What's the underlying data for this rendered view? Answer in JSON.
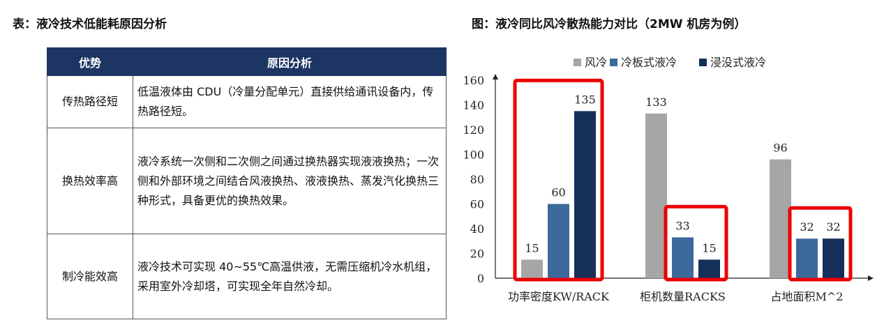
{
  "left": {
    "heading": "表：液冷技术低能耗原因分析",
    "table": {
      "headers": [
        "优势",
        "原因分析"
      ],
      "rows": [
        {
          "advantage": "传热路径短",
          "reason": "低温液体由 CDU（冷量分配单元）直接供给通讯设备内，传热路径短。"
        },
        {
          "advantage": "换热效率高",
          "reason": "液冷系统一次侧和二次侧之间通过换热器实现液液换热；一次侧和外部环境之间结合风液换热、液液换热、蒸发汽化换热三种形式，具备更优的换热效果。"
        },
        {
          "advantage": "制冷能效高",
          "reason": "液冷技术可实现 40~55℃高温供液，无需压缩机冷水机组，采用室外冷却塔，可实现全年自然冷却。"
        }
      ]
    }
  },
  "right": {
    "heading": "图：液冷同比风冷散热能力对比（2MW 机房为例）"
  },
  "chart_data": {
    "type": "bar",
    "title": "图：液冷同比风冷散热能力对比（2MW 机房为例）",
    "categories": [
      "功率密度KW/RACK",
      "柜机数量RACKS",
      "占地面积M^2"
    ],
    "series": [
      {
        "name": "风冷",
        "values": [
          15,
          133,
          96
        ],
        "color": "#a6a6a6"
      },
      {
        "name": "冷板式液冷",
        "values": [
          60,
          33,
          32
        ],
        "color": "#3d6a9d"
      },
      {
        "name": "浸没式液冷",
        "values": [
          135,
          15,
          32
        ],
        "color": "#142f5a"
      }
    ],
    "yticks": [
      0,
      20,
      40,
      60,
      80,
      100,
      120,
      140,
      160
    ],
    "ylim": [
      0,
      160
    ],
    "legend": "top",
    "grid": false,
    "highlight_color": "#ee0000",
    "highlights": [
      {
        "category": "功率密度KW/RACK",
        "series": [
          "风冷",
          "冷板式液冷",
          "浸没式液冷"
        ]
      },
      {
        "category": "柜机数量RACKS",
        "series": [
          "冷板式液冷",
          "浸没式液冷"
        ]
      },
      {
        "category": "占地面积M^2",
        "series": [
          "冷板式液冷",
          "浸没式液冷"
        ]
      }
    ]
  }
}
